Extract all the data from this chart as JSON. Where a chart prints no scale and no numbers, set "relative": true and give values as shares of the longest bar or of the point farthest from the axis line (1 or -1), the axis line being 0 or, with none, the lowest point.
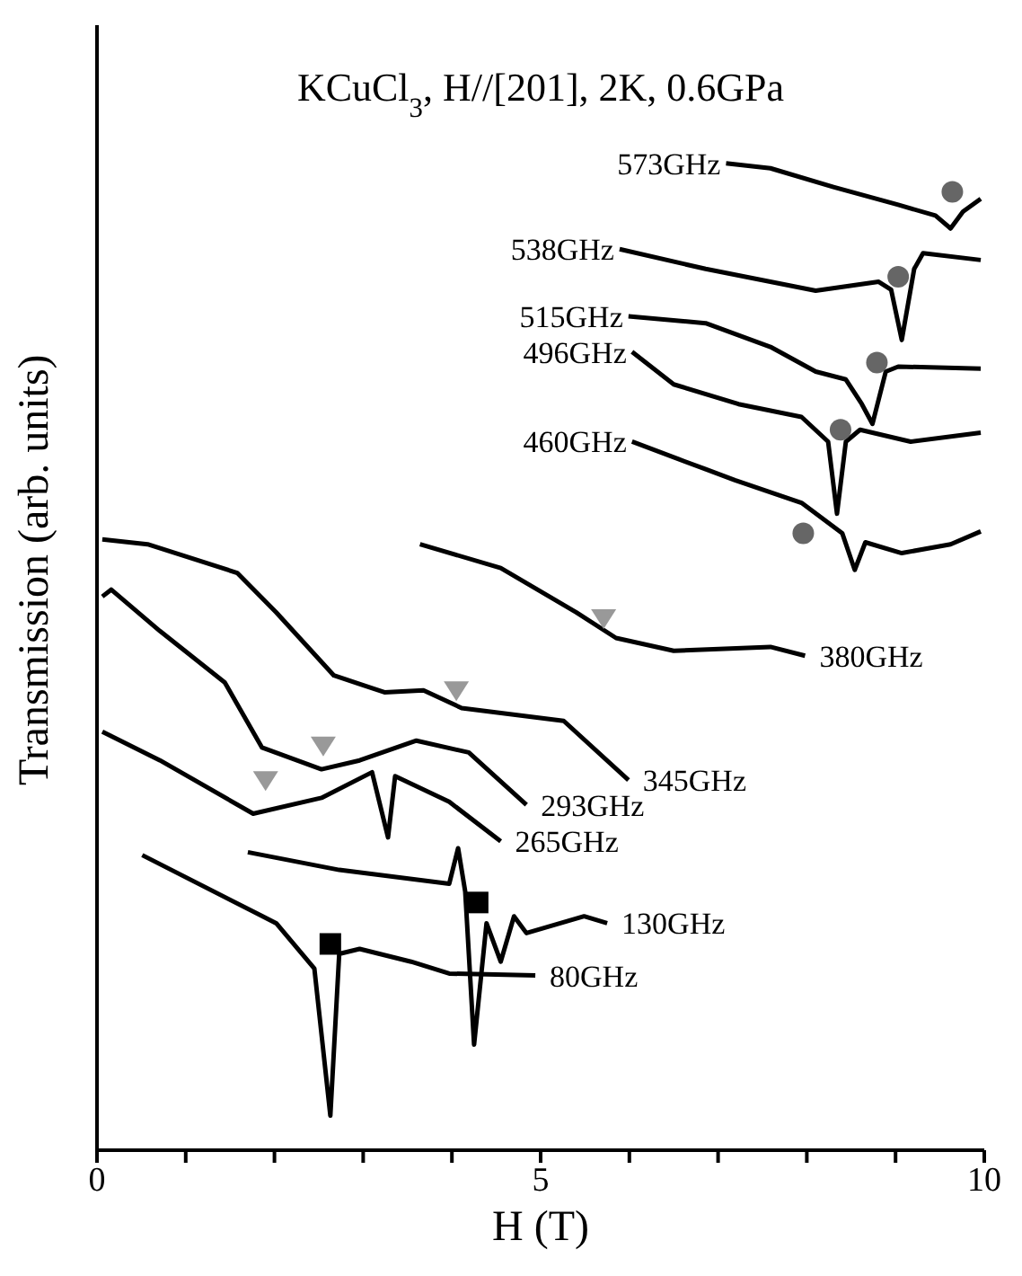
{
  "chart_data": {
    "type": "line",
    "title": "KCuCl$_{3}$, H//[201], 2K, 0.6GPa",
    "xlabel": "H (T)",
    "ylabel": "Transmission (arb. units)",
    "relative": true,
    "xlim": [
      0,
      10
    ],
    "xticks": [
      0,
      {
        "value": 1,
        "label": null
      },
      {
        "value": 2,
        "label": null
      },
      {
        "value": 3,
        "label": null
      },
      {
        "value": 4,
        "label": null
      },
      5,
      {
        "value": 6,
        "label": null
      },
      {
        "value": 7,
        "label": null
      },
      {
        "value": 8,
        "label": null
      },
      {
        "value": 9,
        "label": null
      },
      10
    ],
    "grid": false,
    "legend": false,
    "line_style": "solid",
    "series": [
      {
        "name": "573GHz",
        "color": "#000000",
        "x": [
          7.09,
          7.59,
          8.3,
          9.03,
          9.45,
          9.62,
          9.76,
          9.96
        ],
        "values": [
          1.0,
          0.995,
          0.976,
          0.958,
          0.947,
          0.934,
          0.951,
          0.964
        ]
      },
      {
        "name": "538GHz",
        "color": "#000000",
        "x": [
          5.89,
          6.86,
          8.1,
          8.81,
          8.95,
          9.07,
          9.21,
          9.31,
          9.96
        ],
        "values": [
          0.913,
          0.893,
          0.871,
          0.88,
          0.872,
          0.821,
          0.893,
          0.909,
          0.902
        ]
      },
      {
        "name": "515GHz",
        "color": "#000000",
        "x": [
          5.99,
          6.86,
          7.59,
          8.1,
          8.44,
          8.62,
          8.74,
          8.89,
          9.03,
          9.96
        ],
        "values": [
          0.845,
          0.838,
          0.814,
          0.789,
          0.781,
          0.756,
          0.736,
          0.789,
          0.794,
          0.792
        ]
      },
      {
        "name": "496GHz",
        "color": "#000000",
        "x": [
          6.03,
          6.5,
          7.23,
          7.94,
          8.24,
          8.34,
          8.44,
          8.6,
          9.17,
          9.96
        ],
        "values": [
          0.809,
          0.776,
          0.756,
          0.743,
          0.718,
          0.645,
          0.718,
          0.73,
          0.718,
          0.727
        ]
      },
      {
        "name": "460GHz",
        "color": "#000000",
        "x": [
          6.03,
          6.86,
          7.19,
          7.94,
          8.4,
          8.54,
          8.66,
          9.07,
          9.62,
          9.96
        ],
        "values": [
          0.718,
          0.69,
          0.679,
          0.656,
          0.625,
          0.588,
          0.616,
          0.605,
          0.614,
          0.627
        ]
      },
      {
        "name": "380GHz",
        "color": "#000000",
        "x": [
          3.64,
          4.55,
          5.4,
          5.85,
          6.5,
          7.59,
          7.98
        ],
        "values": [
          0.614,
          0.59,
          0.545,
          0.519,
          0.506,
          0.51,
          0.501
        ]
      },
      {
        "name": "345GHz",
        "color": "#000000",
        "x": [
          0.06,
          0.57,
          1.58,
          2.02,
          2.67,
          3.24,
          3.68,
          4.11,
          5.26,
          5.99
        ],
        "values": [
          0.619,
          0.614,
          0.585,
          0.545,
          0.481,
          0.464,
          0.466,
          0.448,
          0.435,
          0.375
        ]
      },
      {
        "name": "293GHz",
        "color": "#000000",
        "x": [
          0.06,
          0.16,
          0.71,
          1.44,
          1.86,
          2.53,
          2.96,
          3.6,
          4.19,
          4.84
        ],
        "values": [
          0.561,
          0.568,
          0.526,
          0.474,
          0.408,
          0.386,
          0.395,
          0.415,
          0.403,
          0.35
        ]
      },
      {
        "name": "265GHz",
        "color": "#000000",
        "x": [
          0.06,
          0.71,
          1.76,
          2.53,
          3.1,
          3.28,
          3.36,
          3.97,
          4.55
        ],
        "values": [
          0.424,
          0.395,
          0.341,
          0.357,
          0.383,
          0.317,
          0.379,
          0.353,
          0.313
        ]
      },
      {
        "name": "130GHz",
        "color": "#000000",
        "x": [
          1.7,
          2.73,
          3.97,
          4.07,
          4.15,
          4.25,
          4.39,
          4.55,
          4.7,
          4.84,
          5.49,
          5.75
        ],
        "values": [
          0.302,
          0.284,
          0.27,
          0.306,
          0.262,
          0.107,
          0.23,
          0.191,
          0.237,
          0.22,
          0.237,
          0.23
        ]
      },
      {
        "name": "80GHz",
        "color": "#000000",
        "x": [
          0.51,
          2.02,
          2.45,
          2.63,
          2.73,
          2.96,
          3.54,
          3.97,
          4.94
        ],
        "values": [
          0.299,
          0.23,
          0.184,
          0.035,
          0.199,
          0.204,
          0.191,
          0.179,
          0.177
        ]
      },
      {
        "type": "scatter",
        "marker": "circle",
        "color": "#666666",
        "x": [
          9.64,
          9.03,
          8.79,
          8.38,
          7.96
        ],
        "values": [
          0.971,
          0.885,
          0.798,
          0.73,
          0.625
        ]
      },
      {
        "type": "scatter",
        "marker": "triangle",
        "color": "#999999",
        "x": [
          5.71,
          4.05,
          2.55,
          1.9
        ],
        "values": [
          0.539,
          0.466,
          0.41,
          0.375
        ]
      },
      {
        "type": "scatter",
        "marker": "square",
        "color": "#000000",
        "x": [
          4.29,
          2.63
        ],
        "values": [
          0.251,
          0.209
        ]
      }
    ]
  }
}
